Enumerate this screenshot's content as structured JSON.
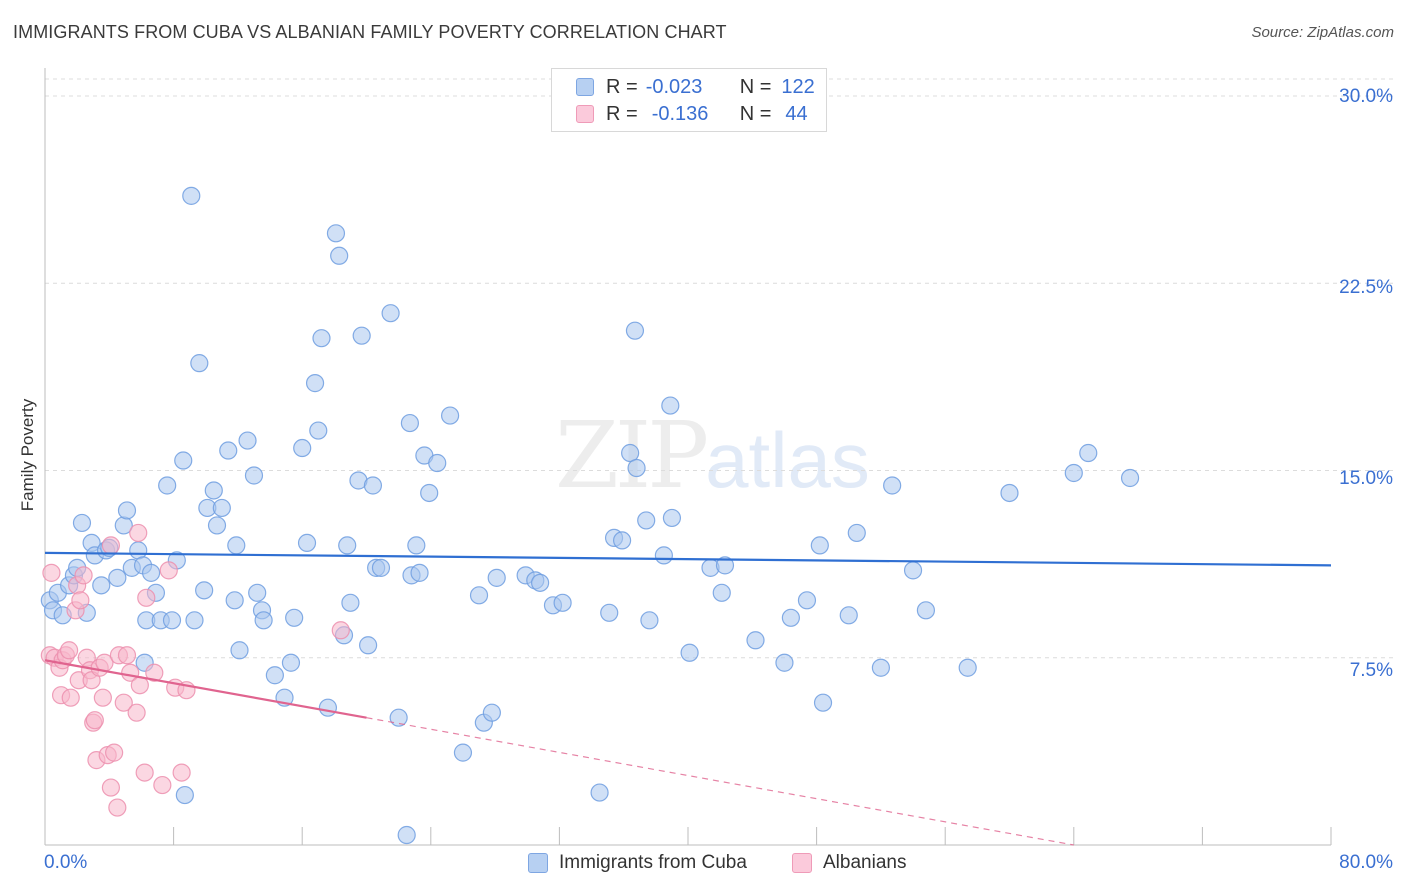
{
  "title": "IMMIGRANTS FROM CUBA VS ALBANIAN FAMILY POVERTY CORRELATION CHART",
  "source": "Source: ZipAtlas.com",
  "watermark": {
    "part1": "ZIP",
    "part2": "atlas"
  },
  "legend_top": {
    "rows": [
      {
        "r_label": "R =",
        "r_value": "-0.023",
        "n_label": "N =",
        "n_value": "122",
        "color": "#a9c6ee"
      },
      {
        "r_label": "R =",
        "r_value": "-0.136",
        "n_label": "N =",
        "n_value": "44",
        "color": "#f7b7cb"
      }
    ]
  },
  "bottom_legend": [
    {
      "label": "Immigrants from Cuba",
      "color": "#a9c6ee"
    },
    {
      "label": "Albanians",
      "color": "#f7b7cb"
    }
  ],
  "chart_data": {
    "type": "scatter",
    "title": "IMMIGRANTS FROM CUBA VS ALBANIAN FAMILY POVERTY CORRELATION CHART",
    "xlabel": "",
    "ylabel": "Family Poverty",
    "xlim": [
      0,
      80
    ],
    "ylim": [
      0,
      30
    ],
    "x_tick_labels": [
      "0.0%",
      "80.0%"
    ],
    "y_ticks": [
      7.5,
      15.0,
      22.5,
      30.0
    ],
    "y_tick_labels": [
      "7.5%",
      "15.0%",
      "22.5%",
      "30.0%"
    ],
    "grid": true,
    "legend": "top-center",
    "series": [
      {
        "name": "Immigrants from Cuba",
        "color": "#6f9de0",
        "fill": "#a9c6ee",
        "trend": {
          "x": [
            0,
            80
          ],
          "y": [
            11.7,
            11.2
          ],
          "color": "#2f6fd2"
        },
        "points": [
          [
            0.3,
            9.8
          ],
          [
            0.5,
            9.4
          ],
          [
            0.8,
            10.1
          ],
          [
            1.1,
            9.2
          ],
          [
            1.5,
            10.4
          ],
          [
            1.8,
            10.8
          ],
          [
            2.0,
            11.1
          ],
          [
            2.3,
            12.9
          ],
          [
            2.6,
            9.3
          ],
          [
            2.9,
            12.1
          ],
          [
            3.1,
            11.6
          ],
          [
            3.5,
            10.4
          ],
          [
            3.8,
            11.8
          ],
          [
            4.0,
            11.9
          ],
          [
            4.5,
            10.7
          ],
          [
            4.9,
            12.8
          ],
          [
            5.1,
            13.4
          ],
          [
            5.4,
            11.1
          ],
          [
            5.8,
            11.8
          ],
          [
            6.1,
            11.2
          ],
          [
            6.2,
            7.3
          ],
          [
            6.3,
            9.0
          ],
          [
            6.6,
            10.9
          ],
          [
            6.9,
            10.1
          ],
          [
            7.2,
            9.0
          ],
          [
            7.6,
            14.4
          ],
          [
            7.9,
            9.0
          ],
          [
            8.2,
            11.4
          ],
          [
            8.6,
            15.4
          ],
          [
            9.1,
            26.0
          ],
          [
            9.3,
            9.0
          ],
          [
            9.6,
            19.3
          ],
          [
            9.9,
            10.2
          ],
          [
            10.1,
            13.5
          ],
          [
            10.5,
            14.2
          ],
          [
            10.7,
            12.8
          ],
          [
            11.0,
            13.5
          ],
          [
            11.4,
            15.8
          ],
          [
            11.8,
            9.8
          ],
          [
            11.9,
            12.0
          ],
          [
            12.1,
            7.8
          ],
          [
            12.6,
            16.2
          ],
          [
            13.0,
            14.8
          ],
          [
            13.2,
            10.1
          ],
          [
            13.5,
            9.4
          ],
          [
            13.6,
            9.0
          ],
          [
            14.3,
            6.8
          ],
          [
            14.9,
            5.9
          ],
          [
            15.3,
            7.3
          ],
          [
            15.5,
            9.1
          ],
          [
            16.0,
            15.9
          ],
          [
            16.3,
            12.1
          ],
          [
            16.8,
            18.5
          ],
          [
            17.0,
            16.6
          ],
          [
            17.2,
            20.3
          ],
          [
            17.6,
            5.5
          ],
          [
            18.1,
            24.5
          ],
          [
            18.3,
            23.6
          ],
          [
            18.6,
            8.4
          ],
          [
            18.8,
            12.0
          ],
          [
            19.0,
            9.7
          ],
          [
            19.5,
            14.6
          ],
          [
            19.7,
            20.4
          ],
          [
            20.1,
            8.0
          ],
          [
            20.4,
            14.4
          ],
          [
            20.6,
            11.1
          ],
          [
            20.9,
            11.1
          ],
          [
            21.5,
            21.3
          ],
          [
            22.0,
            5.1
          ],
          [
            22.5,
            0.4
          ],
          [
            22.7,
            16.9
          ],
          [
            22.8,
            10.8
          ],
          [
            23.1,
            12.0
          ],
          [
            23.3,
            10.9
          ],
          [
            23.6,
            15.6
          ],
          [
            23.9,
            14.1
          ],
          [
            24.4,
            15.3
          ],
          [
            25.2,
            17.2
          ],
          [
            26.0,
            3.7
          ],
          [
            27.0,
            10.0
          ],
          [
            27.3,
            4.9
          ],
          [
            27.8,
            5.3
          ],
          [
            28.1,
            10.7
          ],
          [
            29.9,
            10.8
          ],
          [
            30.5,
            10.6
          ],
          [
            30.8,
            10.5
          ],
          [
            31.6,
            9.6
          ],
          [
            32.2,
            9.7
          ],
          [
            34.5,
            2.1
          ],
          [
            35.1,
            9.3
          ],
          [
            35.4,
            12.3
          ],
          [
            35.9,
            12.2
          ],
          [
            36.4,
            15.7
          ],
          [
            36.8,
            15.1
          ],
          [
            37.4,
            13.0
          ],
          [
            37.6,
            9.0
          ],
          [
            38.5,
            11.6
          ],
          [
            38.9,
            17.6
          ],
          [
            39.0,
            13.1
          ],
          [
            40.1,
            7.7
          ],
          [
            41.4,
            11.1
          ],
          [
            42.1,
            10.1
          ],
          [
            42.3,
            11.2
          ],
          [
            44.2,
            8.2
          ],
          [
            46.0,
            7.3
          ],
          [
            46.4,
            9.1
          ],
          [
            47.4,
            9.8
          ],
          [
            48.2,
            12.0
          ],
          [
            48.4,
            5.7
          ],
          [
            50.0,
            9.2
          ],
          [
            50.5,
            12.5
          ],
          [
            52.0,
            7.1
          ],
          [
            52.7,
            14.4
          ],
          [
            54.0,
            11.0
          ],
          [
            54.8,
            9.4
          ],
          [
            57.4,
            7.1
          ],
          [
            60.0,
            14.1
          ],
          [
            64.0,
            14.9
          ],
          [
            64.9,
            15.7
          ],
          [
            67.5,
            14.7
          ],
          [
            36.7,
            20.6
          ],
          [
            8.7,
            2.0
          ]
        ]
      },
      {
        "name": "Albanians",
        "color": "#ec8fae",
        "fill": "#f7b7cb",
        "trend": {
          "x": [
            0,
            20
          ],
          "y": [
            7.4,
            5.1
          ],
          "dashed_to": [
            64.0,
            0.0
          ],
          "color": "#e0648f"
        },
        "points": [
          [
            0.3,
            7.6
          ],
          [
            0.4,
            10.9
          ],
          [
            0.6,
            7.5
          ],
          [
            0.9,
            7.1
          ],
          [
            1.0,
            6.0
          ],
          [
            1.1,
            7.4
          ],
          [
            1.3,
            7.6
          ],
          [
            1.5,
            7.8
          ],
          [
            1.6,
            5.9
          ],
          [
            1.9,
            9.4
          ],
          [
            2.0,
            10.4
          ],
          [
            2.1,
            6.6
          ],
          [
            2.2,
            9.8
          ],
          [
            2.4,
            10.8
          ],
          [
            2.6,
            7.5
          ],
          [
            2.8,
            7.0
          ],
          [
            2.9,
            6.6
          ],
          [
            3.0,
            4.9
          ],
          [
            3.1,
            5.0
          ],
          [
            3.2,
            3.4
          ],
          [
            3.4,
            7.1
          ],
          [
            3.6,
            5.9
          ],
          [
            3.7,
            7.3
          ],
          [
            3.9,
            3.6
          ],
          [
            4.1,
            2.3
          ],
          [
            4.1,
            12.0
          ],
          [
            4.3,
            3.7
          ],
          [
            4.5,
            1.5
          ],
          [
            4.6,
            7.6
          ],
          [
            4.9,
            5.7
          ],
          [
            5.1,
            7.6
          ],
          [
            5.3,
            6.9
          ],
          [
            5.7,
            5.3
          ],
          [
            5.8,
            12.5
          ],
          [
            5.9,
            6.4
          ],
          [
            6.2,
            2.9
          ],
          [
            6.3,
            9.9
          ],
          [
            6.8,
            6.9
          ],
          [
            7.3,
            2.4
          ],
          [
            7.7,
            11.0
          ],
          [
            8.1,
            6.3
          ],
          [
            8.5,
            2.9
          ],
          [
            8.8,
            6.2
          ],
          [
            18.4,
            8.6
          ]
        ]
      }
    ]
  }
}
